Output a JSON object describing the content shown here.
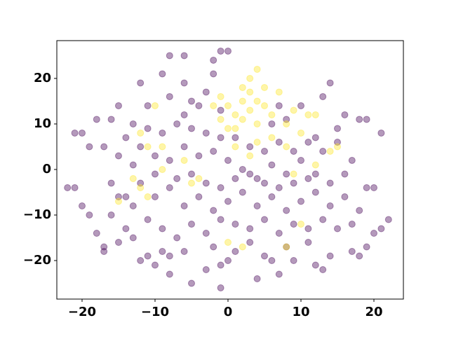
{
  "chart_data": {
    "type": "scatter",
    "xlim": [
      -23.46,
      24.04
    ],
    "ylim": [
      -28.46,
      28.3
    ],
    "xticks": [
      {
        "value": -20,
        "label": "−20"
      },
      {
        "value": -10,
        "label": "−10"
      },
      0,
      10,
      20
    ],
    "yticks": [
      {
        "value": -20,
        "label": "−20"
      },
      {
        "value": -10,
        "label": "−10"
      },
      0,
      10,
      20
    ],
    "opacity": 0.4,
    "series": [
      {
        "color": "#440154",
        "x": [
          -21,
          -20,
          -22,
          -21,
          -20,
          -19,
          -18,
          -17,
          -17,
          -16,
          -15,
          -14,
          -13,
          -12,
          -11,
          -10,
          -9,
          -8,
          -5,
          -3,
          -1,
          0,
          -1,
          1,
          4,
          6,
          7,
          9,
          12,
          14,
          17,
          18,
          19,
          20,
          21,
          22,
          18,
          19,
          20,
          21,
          19,
          18,
          16,
          14,
          13,
          15,
          12,
          10,
          8,
          -8,
          -6,
          -2,
          -1,
          0,
          -2,
          -9,
          -6,
          -12,
          -11,
          -15,
          -16,
          -18,
          -19,
          -17,
          -15,
          -13,
          -12,
          -10,
          -8,
          -6,
          -4,
          -2,
          0,
          2,
          4,
          6,
          8,
          10,
          12,
          14,
          16,
          17,
          15,
          13,
          11,
          9,
          7,
          5,
          3,
          1,
          -1,
          -3,
          -5,
          -7,
          -9,
          -11,
          -13,
          -14,
          -16,
          -14,
          -12,
          -10,
          -8,
          -6,
          -4,
          -2,
          0,
          2,
          4,
          6,
          8,
          10,
          12,
          14,
          16,
          17,
          15,
          13,
          11,
          9,
          7,
          5,
          3,
          1,
          -1,
          -3,
          -5,
          -7,
          -9,
          -11,
          -13,
          -15,
          -10,
          -7,
          -5,
          -3,
          -1,
          1,
          3,
          5,
          7,
          9,
          11,
          6,
          7,
          -4,
          -6,
          -8,
          -3,
          -5,
          -1,
          11,
          8,
          -6,
          -8,
          -2,
          3,
          5,
          13
        ],
        "y": [
          8,
          8,
          -4,
          -4,
          -8,
          -10,
          -14,
          -17,
          -18,
          -10,
          -16,
          -13,
          -15,
          -20,
          -19,
          -21,
          -18,
          -23,
          -25,
          -22,
          -21,
          -20,
          -26,
          -18,
          -24,
          -20,
          -23,
          -20,
          -21,
          -19,
          -18,
          -19,
          -17,
          -14,
          -13,
          -11,
          -9,
          -4,
          -4,
          8,
          11,
          11,
          12,
          19,
          16,
          9,
          7,
          14,
          11,
          25,
          25,
          21,
          26,
          26,
          24,
          21,
          19,
          19,
          14,
          14,
          11,
          11,
          5,
          5,
          3,
          1,
          5,
          3,
          2,
          5,
          3,
          4,
          2,
          0,
          -2,
          1,
          -1,
          2,
          -1,
          -3,
          -1,
          2,
          6,
          4,
          6,
          4,
          6,
          4,
          5,
          7,
          7,
          8,
          9,
          10,
          8,
          9,
          10,
          7,
          -3,
          -6,
          -3,
          -6,
          -4,
          -8,
          -6,
          -9,
          -7,
          -5,
          -8,
          -6,
          -9,
          -7,
          -5,
          -8,
          -6,
          -12,
          -13,
          -11,
          -13,
          -12,
          -14,
          -11,
          -13,
          -12,
          -11,
          -14,
          -12,
          -15,
          -13,
          -11,
          -8,
          -6,
          -1,
          -2,
          -1,
          -3,
          -4,
          -2,
          -1,
          -3,
          -4,
          -3,
          -2,
          10,
          14,
          14,
          12,
          16,
          17,
          15,
          13,
          -16,
          -17,
          -18,
          -19,
          -17,
          -16,
          -19,
          -22
        ]
      },
      {
        "color": "#fde725",
        "x": [
          0,
          1,
          2,
          3,
          4,
          2,
          1,
          3,
          5,
          4,
          3,
          5,
          6,
          -1,
          0,
          -1,
          2,
          4,
          7,
          8,
          9,
          10,
          12,
          14,
          15,
          -12,
          -11,
          -10,
          -9,
          -6,
          -4,
          -5,
          -15,
          -12,
          -11,
          -9,
          4,
          6,
          8,
          9,
          0,
          2,
          8,
          10,
          12,
          -13,
          3,
          1,
          11,
          -2
        ],
        "y": [
          14,
          12,
          11,
          13,
          10,
          15,
          9,
          17,
          18,
          22,
          20,
          14,
          12,
          11,
          9,
          16,
          18,
          15,
          17,
          10,
          13,
          8,
          12,
          4,
          5,
          8,
          5,
          14,
          5,
          2,
          -2,
          -3,
          -7,
          -4,
          -6,
          0,
          6,
          7,
          5,
          -1,
          -16,
          -17,
          -17,
          -12,
          1,
          -2,
          3,
          5,
          12,
          14
        ]
      }
    ]
  }
}
